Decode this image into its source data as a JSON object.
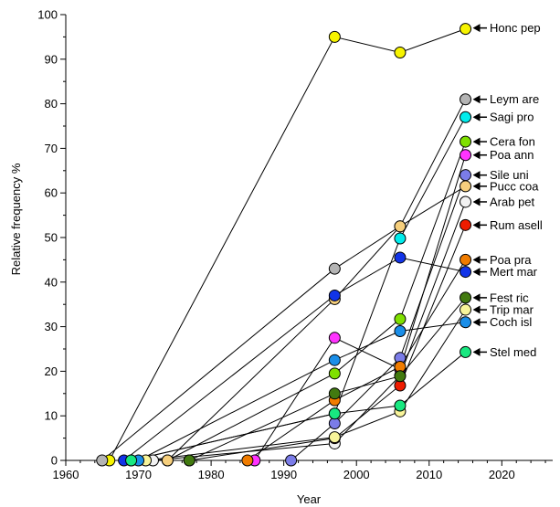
{
  "chart_data": {
    "type": "scatter",
    "xlabel": "Year",
    "ylabel": "Relative frequency %",
    "xlim": [
      1960,
      2027
    ],
    "ylim": [
      0,
      100
    ],
    "x_ticks": [
      1960,
      1970,
      1980,
      1990,
      2000,
      2010,
      2020
    ],
    "y_ticks": [
      0,
      10,
      20,
      30,
      40,
      50,
      60,
      70,
      80,
      90,
      100
    ],
    "series": [
      {
        "name": "Honc pep",
        "color": "#f7f400",
        "points": [
          [
            1966,
            0
          ],
          [
            1997,
            95
          ],
          [
            2006,
            91.5
          ],
          [
            2015,
            96.8
          ]
        ]
      },
      {
        "name": "Leym are",
        "color": "#b4b4b4",
        "points": [
          [
            1965,
            0
          ],
          [
            1997,
            43
          ],
          [
            2006,
            52.5
          ],
          [
            2015,
            81
          ]
        ]
      },
      {
        "name": "Sagi pro",
        "color": "#00ecec",
        "points": [
          [
            1969,
            0
          ],
          [
            1997,
            10.5
          ],
          [
            2006,
            49.8
          ],
          [
            2015,
            77
          ]
        ]
      },
      {
        "name": "Cera fon",
        "color": "#7fe000",
        "points": [
          [
            1974,
            0
          ],
          [
            1997,
            19.5
          ],
          [
            2006,
            31.7
          ],
          [
            2015,
            71.5
          ]
        ]
      },
      {
        "name": "Poa ann",
        "color": "#ff33ff",
        "points": [
          [
            1986,
            0
          ],
          [
            1997,
            27.5
          ],
          [
            2006,
            20.5
          ],
          [
            2015,
            68.5
          ]
        ]
      },
      {
        "name": "Sile uni",
        "color": "#7b7ce8",
        "points": [
          [
            1991,
            0
          ],
          [
            1997,
            8.3
          ],
          [
            2006,
            23
          ],
          [
            2015,
            64
          ]
        ]
      },
      {
        "name": "Pucc coa",
        "color": "#f6cf7d",
        "points": [
          [
            1974,
            0
          ],
          [
            1997,
            36.2
          ],
          [
            2006,
            52.5
          ],
          [
            2015,
            61.5
          ]
        ]
      },
      {
        "name": "Arab pet",
        "color": "#f2f2f2",
        "points": [
          [
            1972,
            0
          ],
          [
            1997,
            3.8
          ],
          [
            2006,
            19
          ],
          [
            2015,
            58
          ]
        ]
      },
      {
        "name": "Rum asell",
        "color": "#ee1c00",
        "points": [
          [
            1977,
            0
          ],
          [
            1997,
            5
          ],
          [
            2006,
            16.8
          ],
          [
            2015,
            52.8
          ]
        ]
      },
      {
        "name": "Poa pra",
        "color": "#f07c00",
        "points": [
          [
            1985,
            0
          ],
          [
            1997,
            13.5
          ],
          [
            2006,
            21
          ],
          [
            2015,
            45
          ]
        ]
      },
      {
        "name": "Mert mar",
        "color": "#1234e8",
        "points": [
          [
            1968,
            0
          ],
          [
            1997,
            37
          ],
          [
            2006,
            45.5
          ],
          [
            2015,
            42.3
          ]
        ]
      },
      {
        "name": "Fest ric",
        "color": "#427a10",
        "points": [
          [
            1977,
            0
          ],
          [
            1997,
            15
          ],
          [
            2006,
            18.9
          ],
          [
            2015,
            36.5
          ]
        ]
      },
      {
        "name": "Trip mar",
        "color": "#f8f49a",
        "points": [
          [
            1971,
            0
          ],
          [
            1997,
            5.2
          ],
          [
            2006,
            11
          ],
          [
            2015,
            33.8
          ]
        ]
      },
      {
        "name": "Coch isl",
        "color": "#1a8ee8",
        "points": [
          [
            1970,
            0
          ],
          [
            1997,
            22.5
          ],
          [
            2006,
            29
          ],
          [
            2015,
            31
          ]
        ]
      },
      {
        "name": "Stel med",
        "color": "#18e880",
        "points": [
          [
            1969,
            0
          ],
          [
            1997,
            10.5
          ],
          [
            2006,
            12.3
          ],
          [
            2015,
            24.3
          ]
        ]
      }
    ],
    "label_y": {
      "Honc pep": 97,
      "Leym are": 81,
      "Sagi pro": 77,
      "Cera fon": 71.5,
      "Poa ann": 68.5,
      "Sile uni": 64,
      "Pucc coa": 61.5,
      "Arab pet": 58,
      "Rum asell": 52.8,
      "Poa pra": 45,
      "Mert mar": 42.3,
      "Fest ric": 36.5,
      "Trip mar": 33.8,
      "Coch isl": 31,
      "Stel med": 24.3
    },
    "grid": false,
    "legend": "right-side labels with arrows"
  }
}
